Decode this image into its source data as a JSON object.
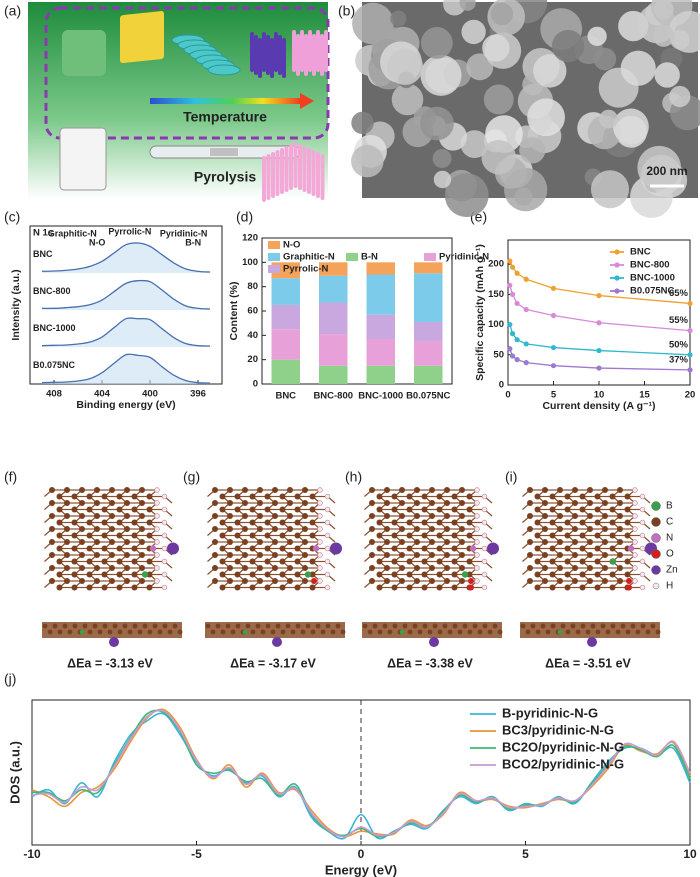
{
  "panel_labels": [
    "(a)",
    "(b)",
    "(c)",
    "(d)",
    "(e)",
    "(f)",
    "(g)",
    "(h)",
    "(i)",
    "(j)"
  ],
  "illustration": {
    "temperature": "Temperature",
    "pyrolysis": "Pyrolysis"
  },
  "sem": {
    "scale_bar": "200 nm"
  },
  "structures": {
    "legend": [
      "B",
      "C",
      "N",
      "O",
      "Zn",
      "H"
    ],
    "energies": [
      "ΔEa = -3.13 eV",
      "ΔEa = -3.17 eV",
      "ΔEa = -3.38 eV",
      "ΔEa = -3.51 eV"
    ]
  },
  "chart_data": [
    {
      "type": "xps",
      "title": "N 1s",
      "xlabel": "Binding energy (eV)",
      "ylabel": "Intensity (a.u.)",
      "xlim": [
        410,
        394
      ],
      "xticks": [
        408,
        404,
        400,
        396
      ],
      "ylim": [
        0,
        1
      ],
      "offset_series": true,
      "x": [
        409,
        408,
        407,
        406,
        405,
        404,
        403,
        402,
        401,
        400,
        399,
        398,
        397,
        396,
        395
      ],
      "annotations": [
        {
          "text": "Graphitic-N",
          "color": "#3a9ad8"
        },
        {
          "text": "Pyrrolic-N",
          "color": "#9b6ad0"
        },
        {
          "text": "Pyridinic-N",
          "color": "#d86ad0"
        },
        {
          "text": "N-O",
          "color": "#e8963a"
        },
        {
          "text": "B-N",
          "color": "#5cb85c"
        }
      ],
      "series": [
        {
          "name": "BNC",
          "color": "#4a6fb0",
          "values": [
            0.05,
            0.06,
            0.08,
            0.12,
            0.2,
            0.35,
            0.6,
            0.85,
            0.9,
            0.8,
            0.55,
            0.3,
            0.12,
            0.05,
            0.03
          ]
        },
        {
          "name": "BNC-800",
          "color": "#4a6fb0",
          "values": [
            0.05,
            0.05,
            0.07,
            0.1,
            0.16,
            0.3,
            0.55,
            0.8,
            0.88,
            0.85,
            0.6,
            0.32,
            0.12,
            0.05,
            0.03
          ]
        },
        {
          "name": "BNC-1000",
          "color": "#4a6fb0",
          "values": [
            0.04,
            0.05,
            0.06,
            0.09,
            0.15,
            0.3,
            0.58,
            0.85,
            0.85,
            0.82,
            0.55,
            0.28,
            0.1,
            0.04,
            0.03
          ]
        },
        {
          "name": "B0.075NC",
          "color": "#4a6fb0",
          "values": [
            0.04,
            0.05,
            0.06,
            0.09,
            0.16,
            0.34,
            0.62,
            0.88,
            0.86,
            0.8,
            0.52,
            0.26,
            0.1,
            0.04,
            0.03
          ]
        }
      ]
    },
    {
      "type": "stacked_bar",
      "ylabel": "Content (%)",
      "ylim": [
        0,
        120
      ],
      "yticks": [
        0,
        20,
        40,
        60,
        80,
        100,
        120
      ],
      "categories": [
        "BNC",
        "BNC-800",
        "BNC-1000",
        "B0.075NC"
      ],
      "series": [
        {
          "name": "B-N",
          "color": "#8fd18a",
          "values": [
            20,
            15,
            15,
            15
          ]
        },
        {
          "name": "Pyridinic-N",
          "color": "#e8a0d8",
          "values": [
            25,
            26,
            22,
            20
          ]
        },
        {
          "name": "Pyrrolic-N",
          "color": "#c9a8e0",
          "values": [
            20,
            26,
            20,
            16
          ]
        },
        {
          "name": "Graphitic-N",
          "color": "#7ccbea",
          "values": [
            22,
            22,
            33,
            40
          ]
        },
        {
          "name": "N-O",
          "color": "#f5a25a",
          "values": [
            13,
            11,
            10,
            9
          ]
        }
      ]
    },
    {
      "type": "line",
      "xlabel": "Current density (A g⁻¹)",
      "ylabel": "Specific capacity (mAh g⁻¹)",
      "xlim": [
        0,
        20
      ],
      "xticks": [
        0,
        5,
        10,
        15,
        20
      ],
      "ylim": [
        0,
        240
      ],
      "yticks": [
        0,
        50,
        100,
        150,
        200
      ],
      "legend": "upper right",
      "markers": true,
      "x": [
        0.2,
        0.5,
        1,
        2,
        5,
        10,
        20
      ],
      "annotations": [
        "65%",
        "55%",
        "50%",
        "37%"
      ],
      "series": [
        {
          "name": "BNC",
          "color": "#f0a030",
          "values": [
            205,
            195,
            185,
            175,
            160,
            148,
            135
          ]
        },
        {
          "name": "BNC-800",
          "color": "#d88ad8",
          "values": [
            165,
            150,
            135,
            125,
            115,
            103,
            90
          ]
        },
        {
          "name": "BNC-1000",
          "color": "#30b8d0",
          "values": [
            100,
            85,
            75,
            68,
            62,
            57,
            50
          ]
        },
        {
          "name": "B0.075NC",
          "color": "#9b7ad0",
          "values": [
            60,
            48,
            42,
            37,
            32,
            28,
            25
          ]
        }
      ]
    },
    {
      "type": "line",
      "xlabel": "Energy (eV)",
      "ylabel": "DOS (a.u.)",
      "smooth": true,
      "xlim": [
        -10,
        10
      ],
      "xticks": [
        -10,
        -5,
        0,
        5,
        10
      ],
      "ylim": [
        0,
        1.05
      ],
      "legend": "upper right",
      "reference_x": 0,
      "x": [
        -10,
        -9.5,
        -9,
        -8.5,
        -8,
        -7.5,
        -7,
        -6.5,
        -6,
        -5.5,
        -5,
        -4.5,
        -4,
        -3.5,
        -3,
        -2.5,
        -2,
        -1.5,
        -1,
        -0.5,
        0,
        0.5,
        1,
        1.5,
        2,
        2.5,
        3,
        3.5,
        4,
        4.5,
        5,
        5.5,
        6,
        6.5,
        7,
        7.5,
        8,
        8.5,
        9,
        9.5,
        10
      ],
      "series": [
        {
          "name": "B-pyridinic-N-G",
          "color": "#3cb4d8",
          "values": [
            0.35,
            0.4,
            0.3,
            0.45,
            0.35,
            0.6,
            0.8,
            0.9,
            0.95,
            0.8,
            0.6,
            0.5,
            0.55,
            0.45,
            0.5,
            0.35,
            0.42,
            0.2,
            0.1,
            0.05,
            0.22,
            0.05,
            0.1,
            0.15,
            0.12,
            0.25,
            0.35,
            0.3,
            0.35,
            0.25,
            0.3,
            0.28,
            0.35,
            0.3,
            0.45,
            0.6,
            0.7,
            0.7,
            0.65,
            0.7,
            0.45
          ]
        },
        {
          "name": "BC3/pyridinic-N-G",
          "color": "#e8963a",
          "values": [
            0.4,
            0.35,
            0.28,
            0.38,
            0.42,
            0.55,
            0.75,
            0.92,
            0.98,
            0.85,
            0.62,
            0.48,
            0.58,
            0.42,
            0.52,
            0.38,
            0.4,
            0.25,
            0.12,
            0.06,
            0.1,
            0.08,
            0.08,
            0.18,
            0.14,
            0.22,
            0.38,
            0.32,
            0.33,
            0.28,
            0.27,
            0.3,
            0.33,
            0.32,
            0.42,
            0.55,
            0.72,
            0.68,
            0.66,
            0.74,
            0.5
          ]
        },
        {
          "name": "BC2O/pyridinic-N-G",
          "color": "#3cb878",
          "values": [
            0.38,
            0.38,
            0.32,
            0.4,
            0.38,
            0.58,
            0.78,
            0.95,
            0.96,
            0.82,
            0.58,
            0.52,
            0.54,
            0.46,
            0.48,
            0.36,
            0.44,
            0.22,
            0.1,
            0.07,
            0.12,
            0.06,
            0.09,
            0.16,
            0.13,
            0.24,
            0.36,
            0.31,
            0.34,
            0.26,
            0.29,
            0.29,
            0.34,
            0.31,
            0.44,
            0.58,
            0.71,
            0.69,
            0.64,
            0.72,
            0.48
          ]
        },
        {
          "name": "BCO2/pyridinic-N-G",
          "color": "#c89ad8",
          "values": [
            0.36,
            0.37,
            0.31,
            0.42,
            0.4,
            0.57,
            0.77,
            0.93,
            0.97,
            0.83,
            0.61,
            0.49,
            0.56,
            0.44,
            0.51,
            0.37,
            0.41,
            0.23,
            0.11,
            0.06,
            0.13,
            0.07,
            0.09,
            0.17,
            0.13,
            0.23,
            0.37,
            0.32,
            0.34,
            0.27,
            0.28,
            0.29,
            0.34,
            0.32,
            0.43,
            0.57,
            0.73,
            0.7,
            0.65,
            0.75,
            0.52
          ]
        }
      ]
    }
  ]
}
